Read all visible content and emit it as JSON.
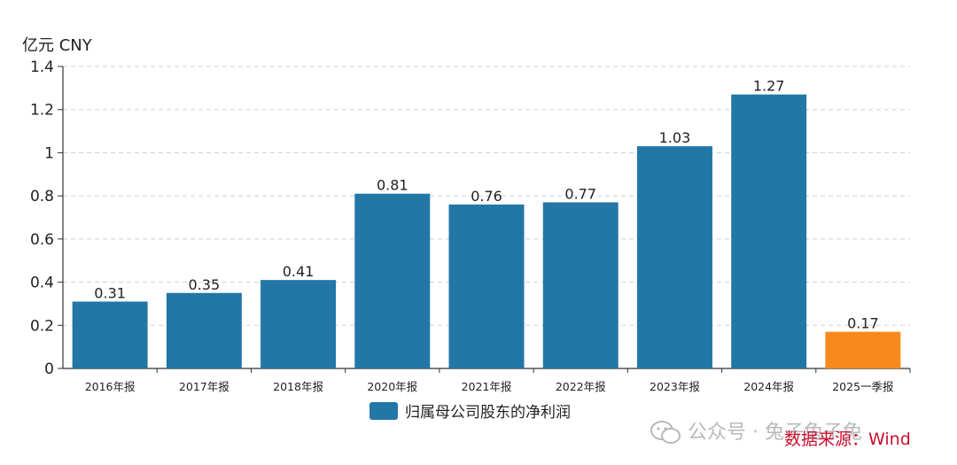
{
  "chart_data": {
    "type": "bar",
    "unit_label": "亿元  CNY",
    "categories": [
      "2016年报",
      "2017年报",
      "2018年报",
      "2020年报",
      "2021年报",
      "2022年报",
      "2023年报",
      "2024年报",
      "2025一季报"
    ],
    "series": [
      {
        "name": "归属母公司股东的净利润",
        "values": [
          0.31,
          0.35,
          0.41,
          0.81,
          0.76,
          0.77,
          1.03,
          1.27,
          0.17
        ],
        "value_labels": [
          "0.31",
          "0.35",
          "0.41",
          "0.81",
          "0.76",
          "0.77",
          "1.03",
          "1.27",
          "0.17"
        ]
      }
    ],
    "bar_colors": [
      "#2277a7",
      "#2277a7",
      "#2277a7",
      "#2277a7",
      "#2277a7",
      "#2277a7",
      "#2277a7",
      "#2277a7",
      "#f78a1d"
    ],
    "ylim": [
      0,
      1.4
    ],
    "yticks": [
      0,
      0.2,
      0.4,
      0.6,
      0.8,
      1,
      1.2,
      1.4
    ],
    "ytick_labels": [
      "0",
      "0.2",
      "0.4",
      "0.6",
      "0.8",
      "1",
      "1.2",
      "1.4"
    ],
    "grid": "horizontal dashed",
    "legend_position": "bottom"
  },
  "legend": {
    "label": "归属母公司股东的净利润",
    "color": "#2277a7"
  },
  "watermark": {
    "text": "公众号 · 兔子兔子兔"
  },
  "source": {
    "text": "数据来源：Wind"
  }
}
